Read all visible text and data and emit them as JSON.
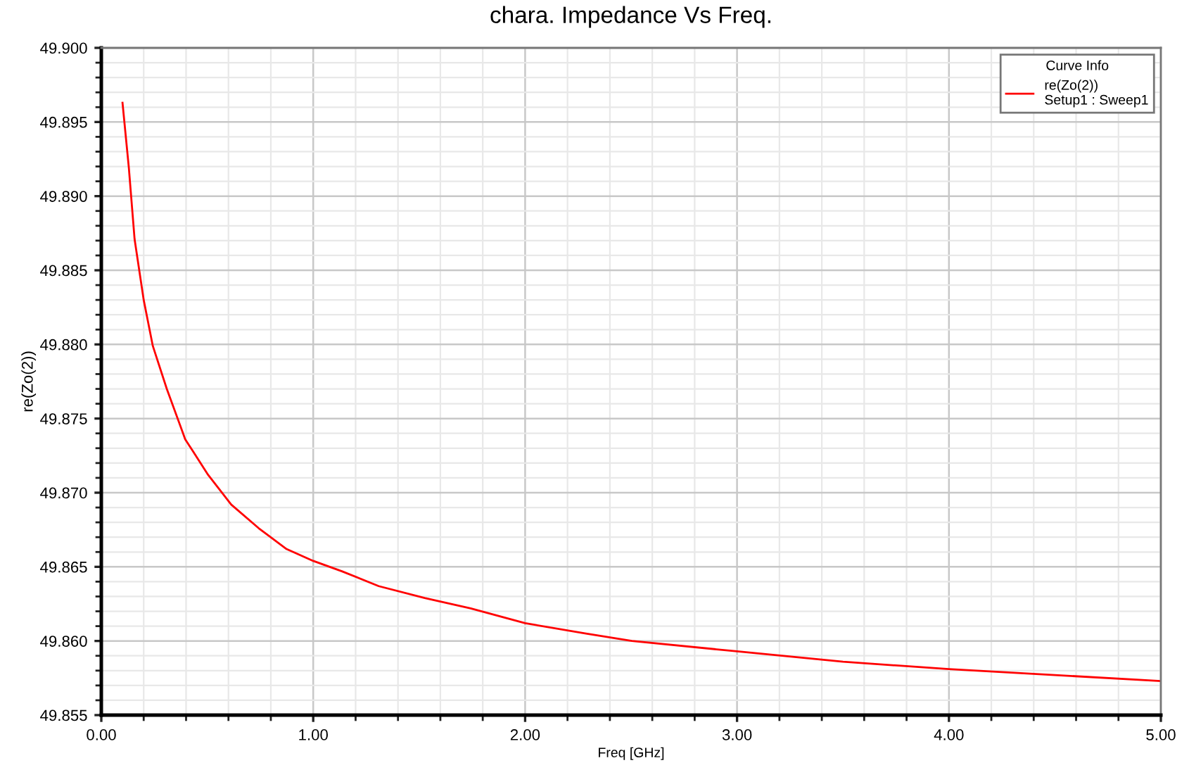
{
  "chart_data": {
    "type": "line",
    "title": "chara. Impedance Vs Freq.",
    "xlabel": "Freq [GHz]",
    "ylabel": "re(Zo(2))",
    "legend_title": "Curve Info",
    "series": [
      {
        "name": "re(Zo(2))\nSetup1 : Sweep1",
        "color": "#ff0000",
        "x": [
          0.1,
          0.13,
          0.157,
          0.2,
          0.243,
          0.309,
          0.396,
          0.428,
          0.504,
          0.613,
          0.743,
          0.874,
          1.0,
          1.135,
          1.309,
          1.526,
          1.743,
          2.0,
          2.287,
          2.504,
          3.0,
          3.5,
          4.0,
          4.5,
          5.0
        ],
        "values": [
          49.8963,
          49.8919,
          49.8871,
          49.883,
          49.8799,
          49.877,
          49.8736,
          49.8729,
          49.8712,
          49.8692,
          49.8676,
          49.8662,
          49.8654,
          49.8647,
          49.8637,
          49.8629,
          49.8622,
          49.8612,
          49.8605,
          49.86,
          49.8593,
          49.8586,
          49.8581,
          49.8577,
          49.8573
        ]
      }
    ],
    "xlim": [
      0,
      5
    ],
    "ylim": [
      49.855,
      49.9
    ],
    "xticks": [
      {
        "value": 0,
        "label": "0.00"
      },
      {
        "value": 1,
        "label": "1.00"
      },
      {
        "value": 2,
        "label": "2.00"
      },
      {
        "value": 3,
        "label": "3.00"
      },
      {
        "value": 4,
        "label": "4.00"
      },
      {
        "value": 5,
        "label": "5.00"
      }
    ],
    "yticks": [
      {
        "value": 49.855,
        "label": "49.855"
      },
      {
        "value": 49.86,
        "label": "49.860"
      },
      {
        "value": 49.865,
        "label": "49.865"
      },
      {
        "value": 49.87,
        "label": "49.870"
      },
      {
        "value": 49.875,
        "label": "49.875"
      },
      {
        "value": 49.88,
        "label": "49.880"
      },
      {
        "value": 49.885,
        "label": "49.885"
      },
      {
        "value": 49.89,
        "label": "49.890"
      },
      {
        "value": 49.895,
        "label": "49.895"
      },
      {
        "value": 49.9,
        "label": "49.900"
      }
    ],
    "grid": true,
    "legend": "top right",
    "marker": "none",
    "line_style": "solid"
  }
}
